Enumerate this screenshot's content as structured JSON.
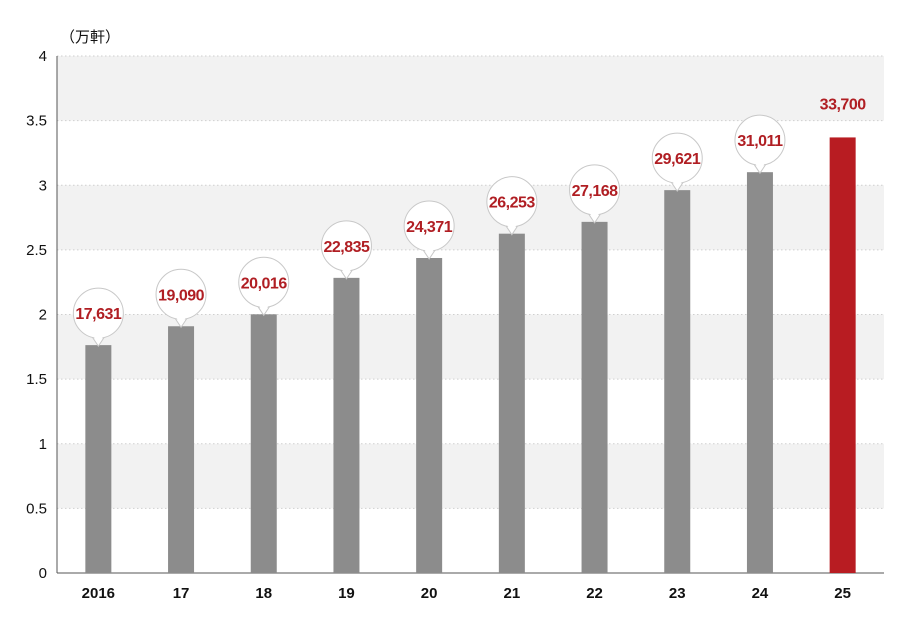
{
  "chart_data": {
    "type": "bar",
    "unit_label": "（万軒）",
    "categories": [
      "2016",
      "17",
      "18",
      "19",
      "20",
      "21",
      "22",
      "23",
      "24",
      "25"
    ],
    "values": [
      1.7631,
      1.909,
      2.0016,
      2.2835,
      2.4371,
      2.6253,
      2.7168,
      2.9621,
      3.1011,
      3.37
    ],
    "data_labels": [
      "17,631",
      "19,090",
      "20,016",
      "22,835",
      "24,371",
      "26,253",
      "27,168",
      "29,621",
      "31,011",
      "33,700"
    ],
    "y_ticks": [
      "0",
      "0.5",
      "1",
      "1.5",
      "2",
      "2.5",
      "3",
      "3.5",
      "4"
    ],
    "ylim": [
      0,
      4
    ],
    "grid": true,
    "colors": {
      "bar": "#8c8c8c",
      "highlight": "#b81c22",
      "label": "#b01e23",
      "band": "#f2f2f2"
    },
    "highlight_category": "25"
  }
}
